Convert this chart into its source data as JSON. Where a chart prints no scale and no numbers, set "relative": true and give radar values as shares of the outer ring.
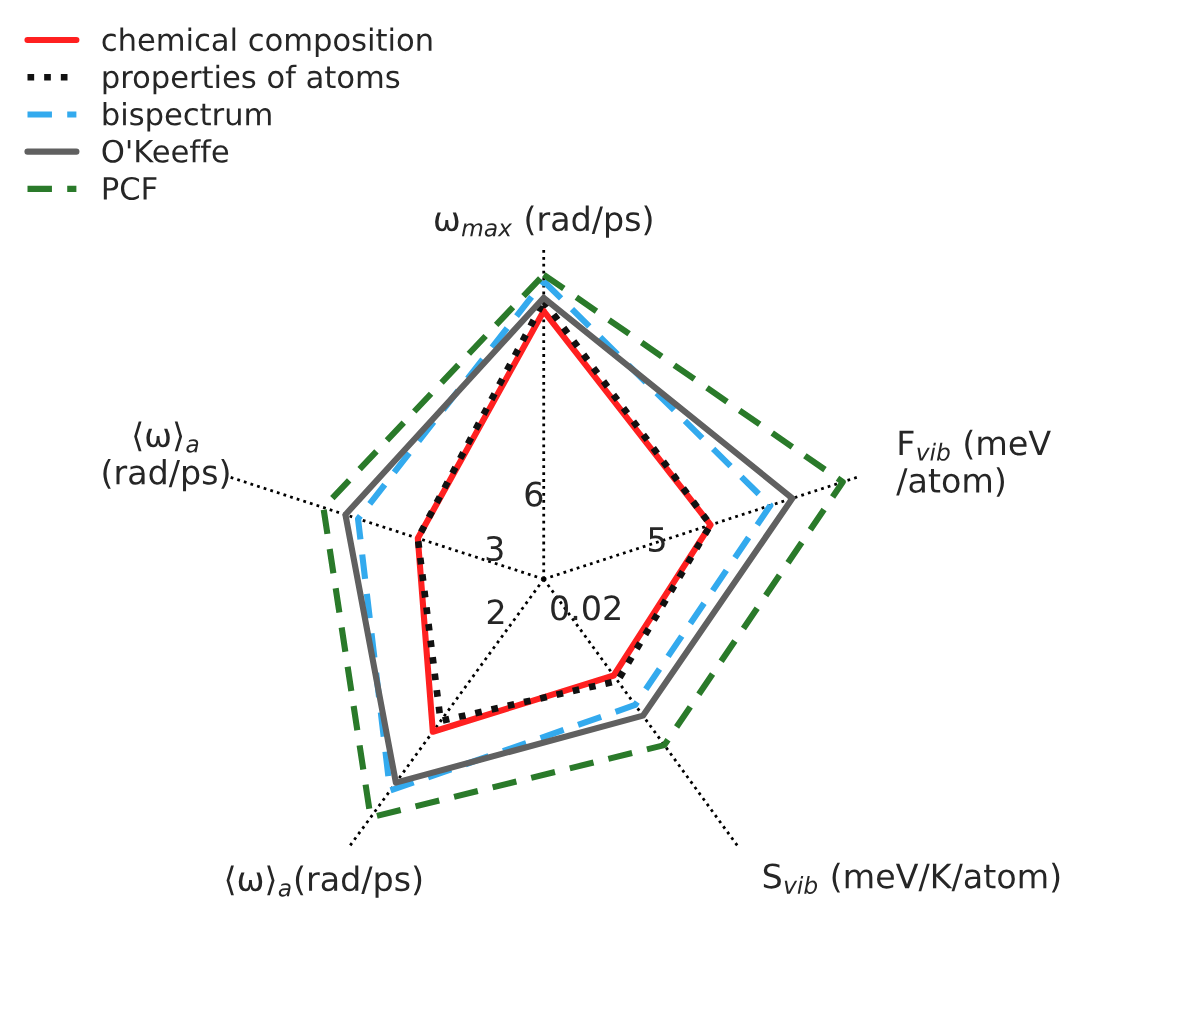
{
  "chart_data": {
    "type": "radar",
    "relative": true,
    "categories": [
      "ω$_{max}$ (rad/ps)",
      "F$_{vib}$ (meV\n/atom)",
      "S$_{vib}$ (meV/K/atom)",
      "⟨ω⟩$_{a}$(rad/ps)",
      "⟨ω⟩$_{a}$\n(rad/ps)"
    ],
    "series": [
      {
        "name": "chemical composition",
        "color": "#ff2020",
        "line_style": "solid",
        "values": [
          0.81,
          0.53,
          0.36,
          0.57,
          0.4
        ]
      },
      {
        "name": "properties of atoms",
        "color": "#111111",
        "line_style": "dotted",
        "values": [
          0.84,
          0.53,
          0.38,
          0.53,
          0.4
        ]
      },
      {
        "name": "bispectrum",
        "color": "#33aaee",
        "line_style": "dashed",
        "values": [
          0.9,
          0.72,
          0.47,
          0.79,
          0.59
        ]
      },
      {
        "name": "O'Keeffe",
        "color": "#606060",
        "line_style": "solid",
        "values": [
          0.85,
          0.79,
          0.51,
          0.76,
          0.63
        ]
      },
      {
        "name": "PCF",
        "color": "#2a7a2a",
        "line_style": "dashed",
        "values": [
          0.92,
          0.95,
          0.62,
          0.89,
          0.7
        ]
      }
    ],
    "annotations": [
      "6",
      "5",
      "0.02",
      "2",
      "3"
    ],
    "grid": true,
    "legend": "top left"
  }
}
